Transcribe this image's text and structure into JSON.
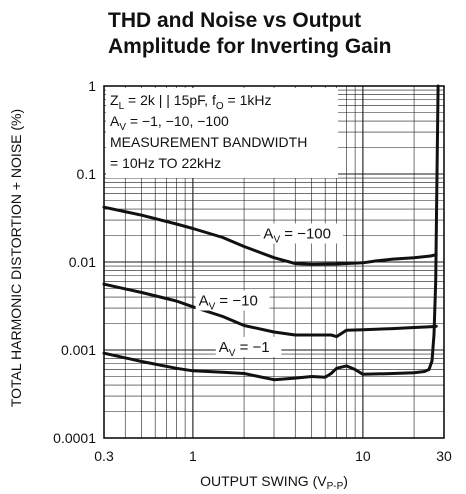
{
  "chart_data": {
    "type": "line",
    "title_lines": [
      "THD and Noise vs Output",
      "Amplitude for Inverting Gain"
    ],
    "xlabel": {
      "main": "OUTPUT SWING (V",
      "sub": "P-P",
      "close": ")"
    },
    "ylabel": "TOTAL HARMONIC DISTORTION + NOISE (%)",
    "x_scale": "log",
    "y_scale": "log",
    "xlim": [
      0.3,
      30
    ],
    "ylim": [
      0.0001,
      1
    ],
    "grid": true,
    "x_ticks": [
      {
        "value": 0.3,
        "label": "0.3"
      },
      {
        "value": 1,
        "label": "1"
      },
      {
        "value": 10,
        "label": "10"
      },
      {
        "value": 30,
        "label": "30"
      }
    ],
    "y_ticks": [
      {
        "value": 1,
        "label": "1"
      },
      {
        "value": 0.1,
        "label": "0.1"
      },
      {
        "value": 0.01,
        "label": "0.01"
      },
      {
        "value": 0.001,
        "label": "0.001"
      },
      {
        "value": 0.0001,
        "label": "0.0001"
      }
    ],
    "annotation_lines": [
      {
        "parts": [
          {
            "t": "Z"
          },
          {
            "t": "L",
            "sub": true
          },
          {
            "t": " = 2k | | 15pF, f"
          },
          {
            "t": "O",
            "sub": true
          },
          {
            "t": " = 1kHz"
          }
        ]
      },
      {
        "parts": [
          {
            "t": "A"
          },
          {
            "t": "V",
            "sub": true
          },
          {
            "t": " = −1, −10, −100"
          }
        ]
      },
      {
        "parts": [
          {
            "t": "MEASUREMENT BANDWIDTH"
          }
        ]
      },
      {
        "parts": [
          {
            "t": "= 10Hz TO 22kHz"
          }
        ]
      }
    ],
    "series": [
      {
        "label": {
          "main": "A",
          "sub": "V",
          "rest": " = −100"
        },
        "x": [
          0.3,
          0.5,
          0.8,
          1.0,
          1.5,
          2.0,
          3.0,
          4.0,
          5.0,
          7.0,
          10.0,
          12.0,
          15.0,
          20.0,
          25.0,
          27.0
        ],
        "y": [
          0.042,
          0.034,
          0.027,
          0.024,
          0.019,
          0.015,
          0.0112,
          0.0096,
          0.0094,
          0.0095,
          0.0098,
          0.0103,
          0.0108,
          0.0112,
          0.0117,
          0.0121
        ]
      },
      {
        "label": {
          "main": "A",
          "sub": "V",
          "rest": " = −10"
        },
        "x": [
          0.3,
          0.5,
          0.8,
          1.0,
          1.5,
          2.0,
          3.0,
          4.0,
          5.0,
          6.5,
          7.0,
          8.0,
          10.0,
          15.0,
          20.0,
          25.0,
          27.0
        ],
        "y": [
          0.0056,
          0.0045,
          0.0036,
          0.0031,
          0.0024,
          0.0019,
          0.0016,
          0.00148,
          0.00148,
          0.00148,
          0.00142,
          0.00168,
          0.0017,
          0.00175,
          0.0018,
          0.00184,
          0.00186
        ],
        "label_value": 0.0032
      },
      {
        "label": {
          "main": "A",
          "sub": "V",
          "rest": " = −1"
        },
        "x": [
          0.3,
          0.5,
          0.8,
          1.0,
          1.5,
          2.0,
          3.0,
          4.0,
          5.0,
          6.0,
          6.5,
          7.0,
          8.0,
          9.0,
          10.0,
          15.0,
          20.0,
          23.0,
          24.5,
          25.5,
          26.2,
          26.8,
          27.3,
          27.7
        ],
        "y": [
          0.00092,
          0.00074,
          0.00062,
          0.00058,
          0.00056,
          0.00054,
          0.00046,
          0.00048,
          0.0005,
          0.00049,
          0.00054,
          0.00062,
          0.00066,
          0.0006,
          0.00053,
          0.00054,
          0.00055,
          0.00057,
          0.0006,
          0.00075,
          0.0015,
          0.006,
          0.1,
          1.0
        ]
      }
    ]
  }
}
